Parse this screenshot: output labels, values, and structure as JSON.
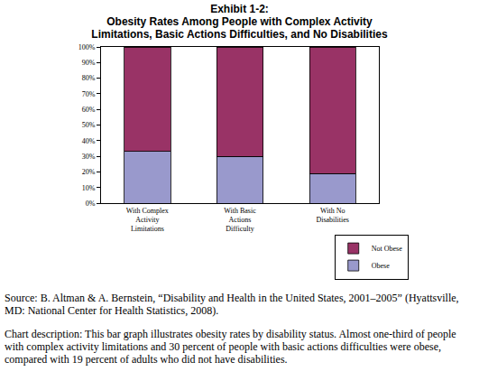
{
  "chart_data": {
    "type": "bar",
    "title": "Exhibit 1-2:",
    "subtitle": "Obesity Rates Among People with Complex Activity Limitations, Basic Actions Difficulties, and No Disabilities",
    "categories": [
      "With Complex Activity Limitations",
      "With Basic Actions Difficulty",
      "With No Disabilities"
    ],
    "series": [
      {
        "name": "Obese",
        "color": "#9999cc",
        "values": [
          33,
          30,
          19
        ]
      },
      {
        "name": "Not Obese",
        "color": "#993366",
        "values": [
          67,
          70,
          81
        ]
      }
    ],
    "stacked": true,
    "ylim": [
      0,
      100
    ],
    "yticks": [
      {
        "value": 0,
        "label": "0%"
      },
      {
        "value": 10,
        "label": "10%"
      },
      {
        "value": 20,
        "label": "20%"
      },
      {
        "value": 30,
        "label": "30%"
      },
      {
        "value": 40,
        "label": "40%"
      },
      {
        "value": 50,
        "label": "50%"
      },
      {
        "value": 60,
        "label": "60%"
      },
      {
        "value": 70,
        "label": "70%"
      },
      {
        "value": 80,
        "label": "80%"
      },
      {
        "value": 90,
        "label": "90%"
      },
      {
        "value": 100,
        "label": "100%"
      }
    ],
    "grid": false,
    "legend": "right",
    "annotations": [
      "Source: B. Altman & A. Bernstein, “Disability and Health in the United States, 2001–2005” (Hyattsville, MD: National Center for Health Statistics, 2008).",
      "Chart description: This bar graph illustrates obesity rates by disability status. Almost one-third of people with complex activity limitations and 30 percent of people with basic actions difficulties were obese, compared with 19 percent of adults who did not have disabilities."
    ]
  }
}
